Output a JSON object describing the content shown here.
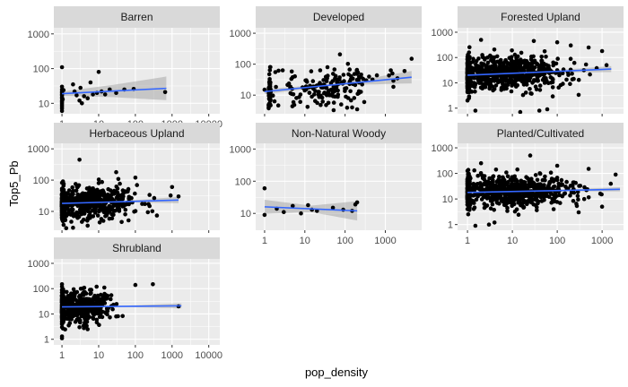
{
  "chart_data": {
    "type": "scatter",
    "xlabel": "pop_density",
    "ylabel": "Top5_Pb",
    "x_scale": "log10",
    "y_scale": "log10",
    "smooth": "linear fit with confidence band",
    "colors": {
      "panel_bg": "#ebebeb",
      "strip_bg": "#d9d9d9",
      "grid": "#ffffff",
      "points": "#000000",
      "fit_line": "#3366ff",
      "band": "#999999"
    },
    "panels": [
      {
        "title": "Barren",
        "xlim": [
          0.6,
          20000
        ],
        "ylim": [
          5,
          1500
        ],
        "xticks": [
          1,
          10,
          100,
          1000,
          10000
        ],
        "xtick_labels": [
          "1",
          "10",
          "100",
          "1000",
          "10000"
        ],
        "yticks": [
          10,
          100,
          1000
        ],
        "ytick_labels": [
          "10",
          "100",
          "1000"
        ],
        "fit": {
          "x": [
            1,
            700
          ],
          "y": [
            19,
            27
          ]
        },
        "band_width": [
          0.06,
          0.18,
          0.34
        ],
        "points": [
          [
            1,
            110
          ],
          [
            1,
            30
          ],
          [
            1,
            25
          ],
          [
            1,
            22
          ],
          [
            1,
            20
          ],
          [
            1,
            18
          ],
          [
            1,
            17
          ],
          [
            1,
            15
          ],
          [
            1,
            14
          ],
          [
            1,
            12
          ],
          [
            1,
            11
          ],
          [
            1,
            10
          ],
          [
            1,
            9
          ],
          [
            1,
            8
          ],
          [
            1,
            7
          ],
          [
            1,
            6
          ],
          [
            1.05,
            13
          ],
          [
            1.1,
            24
          ],
          [
            2,
            35
          ],
          [
            2.2,
            22
          ],
          [
            2.5,
            17
          ],
          [
            3,
            12
          ],
          [
            3.5,
            10
          ],
          [
            3.2,
            28
          ],
          [
            4,
            16
          ],
          [
            5,
            14
          ],
          [
            6,
            40
          ],
          [
            7,
            18
          ],
          [
            9,
            20
          ],
          [
            10,
            80
          ],
          [
            12,
            22
          ],
          [
            15,
            18
          ],
          [
            20,
            25
          ],
          [
            30,
            20
          ],
          [
            50,
            25
          ],
          [
            90,
            26
          ],
          [
            650,
            21
          ]
        ]
      },
      {
        "title": "Developed",
        "xlim": [
          0.6,
          8000
        ],
        "ylim": [
          2.5,
          1500
        ],
        "xticks": [
          1,
          10,
          100,
          1000
        ],
        "xtick_labels": [],
        "yticks": [
          10,
          100,
          1000
        ],
        "ytick_labels": [
          "10",
          "100",
          "1000"
        ],
        "fit": {
          "x": [
            1,
            4500
          ],
          "y": [
            13,
            38
          ]
        },
        "band_width": [
          0.08,
          0.03,
          0.2
        ],
        "random": {
          "n": 230,
          "seed": 7,
          "xlog_min": 0.1,
          "xlog_max": 3.2,
          "xlog_mean": 1.6,
          "xlog_sd": 0.6,
          "ylog_sd": 0.3
        },
        "points": [
          [
            1,
            15
          ],
          [
            4500,
            150
          ],
          [
            3000,
            60
          ],
          [
            2000,
            35
          ],
          [
            1500,
            50
          ],
          [
            120,
            8
          ],
          [
            150,
            4
          ],
          [
            200,
            3.5
          ],
          [
            80,
            5
          ],
          [
            300,
            6
          ]
        ]
      },
      {
        "title": "Forested Upland",
        "xlim": [
          0.6,
          3000
        ],
        "ylim": [
          0.6,
          1500
        ],
        "xticks": [
          1,
          10,
          100,
          1000
        ],
        "xtick_labels": [],
        "yticks": [
          1,
          10,
          100,
          1000
        ],
        "ytick_labels": [
          "1",
          "10",
          "100",
          "1000"
        ],
        "fit": {
          "x": [
            1,
            1600
          ],
          "y": [
            20,
            35
          ]
        },
        "band_width": [
          0.04,
          0.02,
          0.12
        ],
        "random": {
          "n": 900,
          "seed": 11,
          "xlog_min": 0,
          "xlog_max": 3.1,
          "xlog_mean": 0.8,
          "xlog_sd": 0.7,
          "ylog_sd": 0.32
        },
        "points": [
          [
            2,
            500
          ],
          [
            30,
            450
          ],
          [
            100,
            400
          ],
          [
            200,
            300
          ],
          [
            500,
            250
          ],
          [
            1000,
            180
          ],
          [
            15,
            0.7
          ],
          [
            40,
            0.8
          ],
          [
            60,
            0.9
          ],
          [
            1.5,
            0.8
          ]
        ]
      },
      {
        "title": "Herbaceous Upland",
        "xlim": [
          0.6,
          20000
        ],
        "ylim": [
          2.5,
          1500
        ],
        "xticks": [
          1,
          10,
          100,
          1000,
          10000
        ],
        "xtick_labels": [],
        "yticks": [
          10,
          100,
          1000
        ],
        "ytick_labels": [
          "10",
          "100",
          "1000"
        ],
        "fit": {
          "x": [
            1,
            1500
          ],
          "y": [
            18,
            23
          ]
        },
        "band_width": [
          0.04,
          0.02,
          0.1
        ],
        "random": {
          "n": 700,
          "seed": 19,
          "xlog_min": 0,
          "xlog_max": 3.2,
          "xlog_mean": 0.7,
          "xlog_sd": 0.65,
          "ylog_sd": 0.26
        },
        "points": [
          [
            3,
            450
          ],
          [
            10,
            80
          ],
          [
            30,
            180
          ],
          [
            100,
            120
          ],
          [
            1000,
            60
          ],
          [
            1500,
            30
          ],
          [
            2,
            3
          ],
          [
            5,
            3.5
          ]
        ]
      },
      {
        "title": "Non-Natural Woody",
        "xlim": [
          0.6,
          8000
        ],
        "ylim": [
          3,
          1500
        ],
        "xticks": [
          1,
          10,
          100,
          1000
        ],
        "xtick_labels": [
          "1",
          "10",
          "100",
          "1000"
        ],
        "yticks": [
          10,
          100,
          1000
        ],
        "ytick_labels": [
          "10",
          "100",
          "1000"
        ],
        "fit": {
          "x": [
            1,
            200
          ],
          "y": [
            16,
            12
          ]
        },
        "band_width": [
          0.22,
          0.1,
          0.3
        ],
        "points": [
          [
            1,
            60
          ],
          [
            1,
            9
          ],
          [
            2,
            14
          ],
          [
            3,
            11
          ],
          [
            5,
            17
          ],
          [
            8,
            10
          ],
          [
            12,
            18
          ],
          [
            15,
            13
          ],
          [
            20,
            12
          ],
          [
            50,
            15
          ],
          [
            90,
            13
          ],
          [
            150,
            12
          ],
          [
            180,
            19
          ],
          [
            200,
            22
          ]
        ]
      },
      {
        "title": "Planted/Cultivated",
        "xlim": [
          0.6,
          3000
        ],
        "ylim": [
          0.6,
          1500
        ],
        "xticks": [
          1,
          10,
          100,
          1000
        ],
        "xtick_labels": [
          "1",
          "10",
          "100",
          "1000"
        ],
        "yticks": [
          1,
          10,
          100,
          1000
        ],
        "ytick_labels": [
          "1",
          "10",
          "100",
          "1000"
        ],
        "fit": {
          "x": [
            1,
            2500
          ],
          "y": [
            18,
            24
          ]
        },
        "band_width": [
          0.03,
          0.02,
          0.08
        ],
        "random": {
          "n": 900,
          "seed": 23,
          "xlog_min": 0,
          "xlog_max": 3.4,
          "xlog_mean": 0.9,
          "xlog_sd": 0.7,
          "ylog_sd": 0.3
        },
        "points": [
          [
            2,
            250
          ],
          [
            25,
            500
          ],
          [
            100,
            200
          ],
          [
            500,
            150
          ],
          [
            2000,
            90
          ],
          [
            3,
            1
          ],
          [
            1.5,
            0.9
          ],
          [
            4,
            1.2
          ],
          [
            300,
            3
          ],
          [
            1000,
            5
          ]
        ]
      },
      {
        "title": "Shrubland",
        "xlim": [
          0.6,
          20000
        ],
        "ylim": [
          0.6,
          1500
        ],
        "xticks": [
          1,
          10,
          100,
          1000,
          10000
        ],
        "xtick_labels": [
          "1",
          "10",
          "100",
          "1000",
          "10000"
        ],
        "yticks": [
          1,
          10,
          100,
          1000
        ],
        "ytick_labels": [
          "1",
          "10",
          "100",
          "1000"
        ],
        "fit": {
          "x": [
            1,
            1800
          ],
          "y": [
            19,
            21
          ]
        },
        "band_width": [
          0.04,
          0.02,
          0.1
        ],
        "random": {
          "n": 600,
          "seed": 31,
          "xlog_min": 0,
          "xlog_max": 2.0,
          "xlog_mean": 0.5,
          "xlog_sd": 0.4,
          "ylog_sd": 0.28
        },
        "points": [
          [
            1,
            150
          ],
          [
            1,
            120
          ],
          [
            1,
            90
          ],
          [
            1,
            70
          ],
          [
            1,
            50
          ],
          [
            1,
            40
          ],
          [
            1,
            30
          ],
          [
            1,
            25
          ],
          [
            1,
            20
          ],
          [
            1,
            15
          ],
          [
            1,
            12
          ],
          [
            1,
            10
          ],
          [
            1,
            8
          ],
          [
            1,
            6
          ],
          [
            1,
            5
          ],
          [
            1,
            4
          ],
          [
            1,
            3
          ],
          [
            1,
            1.3
          ],
          [
            1,
            1.1
          ],
          [
            100,
            140
          ],
          [
            300,
            150
          ],
          [
            1500,
            20
          ],
          [
            30,
            8
          ],
          [
            3,
            3
          ],
          [
            5,
            2.5
          ]
        ]
      }
    ]
  }
}
